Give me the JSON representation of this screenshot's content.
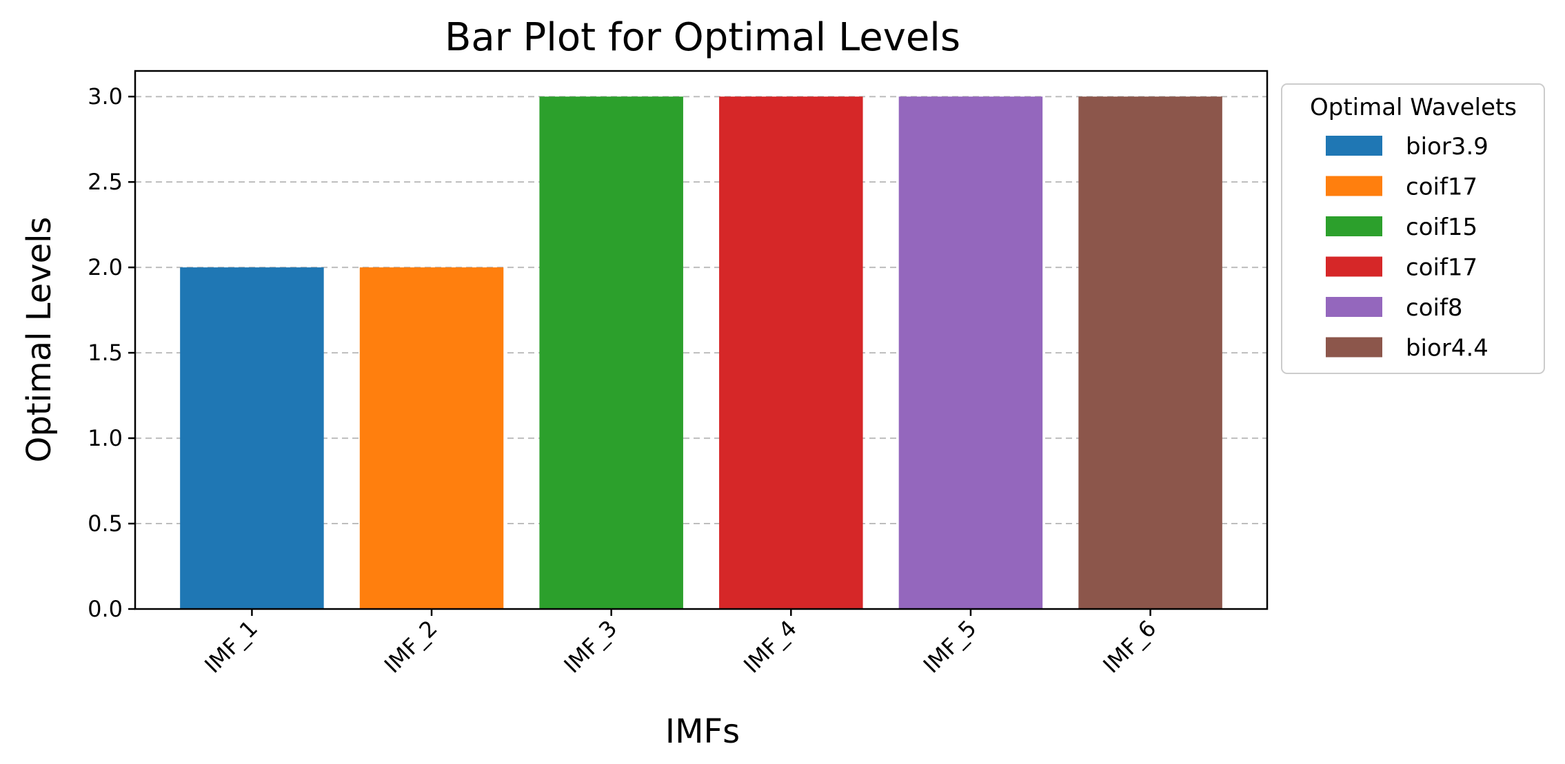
{
  "chart_data": {
    "type": "bar",
    "title": "Bar Plot for Optimal Levels",
    "xlabel": "IMFs",
    "ylabel": "Optimal Levels",
    "categories": [
      "IMF_1",
      "IMF_2",
      "IMF_3",
      "IMF_4",
      "IMF_5",
      "IMF_6"
    ],
    "values": [
      2.0,
      2.0,
      3.0,
      3.0,
      3.0,
      3.0
    ],
    "colors": [
      "#1f77b4",
      "#ff7f0e",
      "#2ca02c",
      "#d62728",
      "#9467bd",
      "#8c564b"
    ],
    "ylim": [
      0,
      3.15
    ],
    "yticks": [
      0.0,
      0.5,
      1.0,
      1.5,
      2.0,
      2.5,
      3.0
    ],
    "ytick_labels": [
      "0.0",
      "0.5",
      "1.0",
      "1.5",
      "2.0",
      "2.5",
      "3.0"
    ],
    "grid": "y, dashed",
    "xtick_rotation": 45,
    "legend": {
      "title": "Optimal Wavelets",
      "placement": "outside-upper-right",
      "entries": [
        "bior3.9",
        "coif17",
        "coif15",
        "coif17",
        "coif8",
        "bior4.4"
      ]
    }
  }
}
